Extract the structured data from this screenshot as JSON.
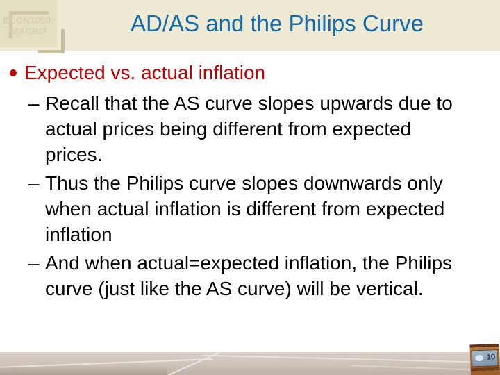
{
  "slide": {
    "logo": {
      "line1": "ECON1050:",
      "line2": "MACRO"
    },
    "title": "AD/AS and the Philips Curve",
    "bullet": {
      "marker": "•",
      "text": "Expected vs. actual inflation"
    },
    "sub_bullets": [
      {
        "dash": "–",
        "lines": [
          "Recall that the AS curve slopes upwards due to",
          "actual prices being different from expected",
          "prices."
        ]
      },
      {
        "dash": "–",
        "lines": [
          "Thus the Philips curve slopes downwards only",
          "when actual inflation is different from expected",
          "inflation"
        ]
      },
      {
        "dash": "–",
        "lines": [
          "And when actual=expected inflation, the Philips",
          "curve (just like the AS curve) will be vertical."
        ]
      }
    ],
    "page_number": "10",
    "colors": {
      "title_blue": "#146aab",
      "accent_red": "#c00000",
      "header_bg": "#eeead3",
      "logo_bg": "#e4dec2",
      "floor_tile": "#cdc3b9",
      "thumb_wood": "#a96931",
      "thumb_panel": "#8ea6ba"
    }
  }
}
